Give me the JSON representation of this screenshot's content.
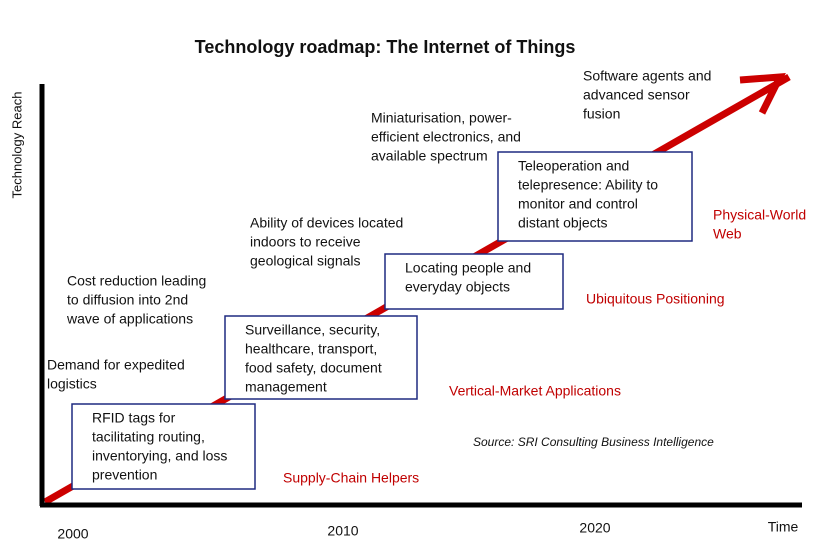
{
  "title": "Technology roadmap: The Internet of Things",
  "axes": {
    "y_label": "Technology Reach",
    "x_label": "Time",
    "years": [
      "2000",
      "2010",
      "2020"
    ]
  },
  "boxes": [
    {
      "lines": [
        "RFID tags for",
        "tacilitating routing,",
        "inventorying, and loss",
        "prevention"
      ]
    },
    {
      "lines": [
        "Surveillance, security,",
        "healthcare, transport,",
        "food safety, document",
        "management"
      ]
    },
    {
      "lines": [
        "Locating people and",
        "everyday objects"
      ]
    },
    {
      "lines": [
        "Teleoperation and",
        "telepresence: Ability to",
        "monitor and control",
        "distant objects"
      ]
    }
  ],
  "drivers": [
    {
      "lines": [
        "Demand for expedited",
        "logistics"
      ]
    },
    {
      "lines": [
        "Cost reduction leading",
        "to diffusion into 2nd",
        "wave of applications"
      ]
    },
    {
      "lines": [
        "Ability of devices located",
        "indoors to receive",
        "geological signals"
      ]
    },
    {
      "lines": [
        "Miniaturisation, power-",
        "efficient electronics, and",
        "available spectrum"
      ]
    },
    {
      "lines": [
        "Software agents and",
        "advanced sensor",
        "fusion"
      ]
    }
  ],
  "phases": [
    {
      "lines": [
        "Supply-Chain Helpers"
      ]
    },
    {
      "lines": [
        "Vertical-Market Applications"
      ]
    },
    {
      "lines": [
        "Ubiquitous Positioning"
      ]
    },
    {
      "lines": [
        "Physical-World",
        "Web"
      ]
    }
  ],
  "source": "Source: SRI Consulting Business Intelligence"
}
